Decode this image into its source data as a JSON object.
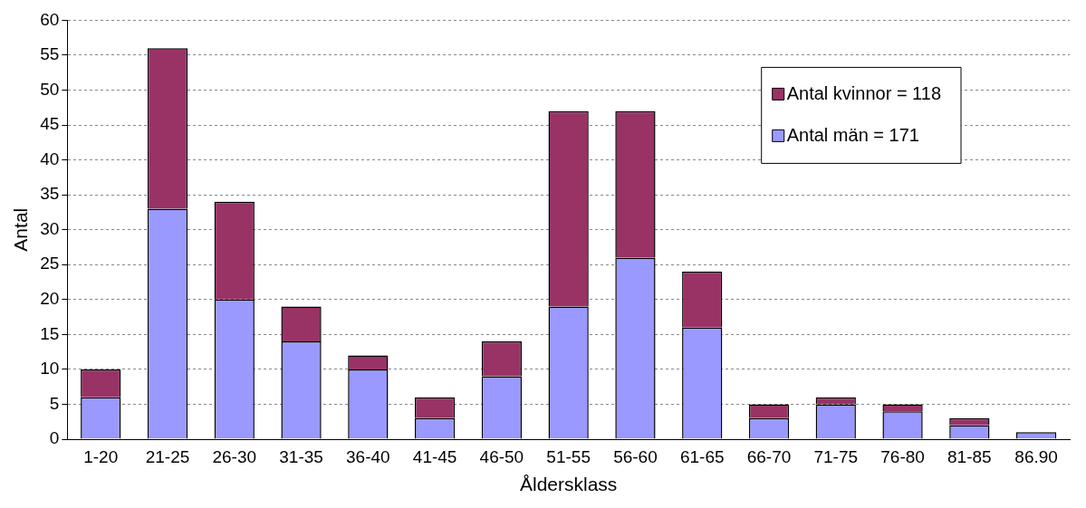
{
  "chart_data": {
    "type": "bar",
    "stacked": true,
    "xlabel": "Åldersklass",
    "ylabel": "Antal",
    "categories": [
      "1-20",
      "21-25",
      "26-30",
      "31-35",
      "36-40",
      "41-45",
      "46-50",
      "51-55",
      "56-60",
      "61-65",
      "66-70",
      "71-75",
      "76-80",
      "81-85",
      "86.90"
    ],
    "series": [
      {
        "name": "Antal män = 171",
        "color": "#9999ff",
        "values": [
          6,
          33,
          20,
          14,
          10,
          3,
          9,
          19,
          26,
          16,
          3,
          5,
          4,
          2,
          1
        ]
      },
      {
        "name": "Antal kvinnor = 118",
        "color": "#993366",
        "values": [
          4,
          23,
          14,
          5,
          2,
          3,
          5,
          28,
          21,
          8,
          2,
          1,
          1,
          1,
          0
        ]
      }
    ],
    "ylim": [
      0,
      60
    ],
    "yticks": [
      0,
      5,
      10,
      15,
      20,
      25,
      30,
      35,
      40,
      45,
      50,
      55,
      60
    ],
    "grid": "y",
    "legend": "top right"
  }
}
